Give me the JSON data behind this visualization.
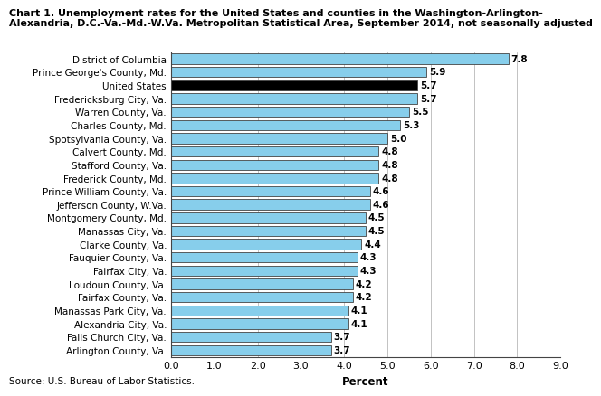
{
  "title_line1": "Chart 1. Unemployment rates for the United States and counties in the Washington-Arlington-",
  "title_line2": "Alexandria, D.C.-Va.-Md.-W.Va. Metropolitan Statistical Area, September 2014, not seasonally adjusted",
  "categories": [
    "Arlington County, Va.",
    "Falls Church City, Va.",
    "Alexandria City, Va.",
    "Manassas Park City, Va.",
    "Fairfax County, Va.",
    "Loudoun County, Va.",
    "Fairfax City, Va.",
    "Fauquier County, Va.",
    "Clarke County, Va.",
    "Manassas City, Va.",
    "Montgomery County, Md.",
    "Jefferson County, W.Va.",
    "Prince William County, Va.",
    "Frederick County, Md.",
    "Stafford County, Va.",
    "Calvert County, Md.",
    "Spotsylvania County, Va.",
    "Charles County, Md.",
    "Warren County, Va.",
    "Fredericksburg City, Va.",
    "United States",
    "Prince George's County, Md.",
    "District of Columbia"
  ],
  "values": [
    3.7,
    3.7,
    4.1,
    4.1,
    4.2,
    4.2,
    4.3,
    4.3,
    4.4,
    4.5,
    4.5,
    4.6,
    4.6,
    4.8,
    4.8,
    4.8,
    5.0,
    5.3,
    5.5,
    5.7,
    5.7,
    5.9,
    7.8
  ],
  "bar_color_normal": "#87CEEB",
  "bar_color_us": "#000000",
  "bar_edge_color": "#444444",
  "xlabel": "Percent",
  "xlim": [
    0.0,
    9.0
  ],
  "xticks": [
    0.0,
    1.0,
    2.0,
    3.0,
    4.0,
    5.0,
    6.0,
    7.0,
    8.0,
    9.0
  ],
  "source": "Source: U.S. Bureau of Labor Statistics.",
  "label_fontsize": 7.5,
  "tick_fontsize": 8,
  "title_fontsize": 8.0,
  "xlabel_fontsize": 8.5,
  "source_fontsize": 7.5
}
